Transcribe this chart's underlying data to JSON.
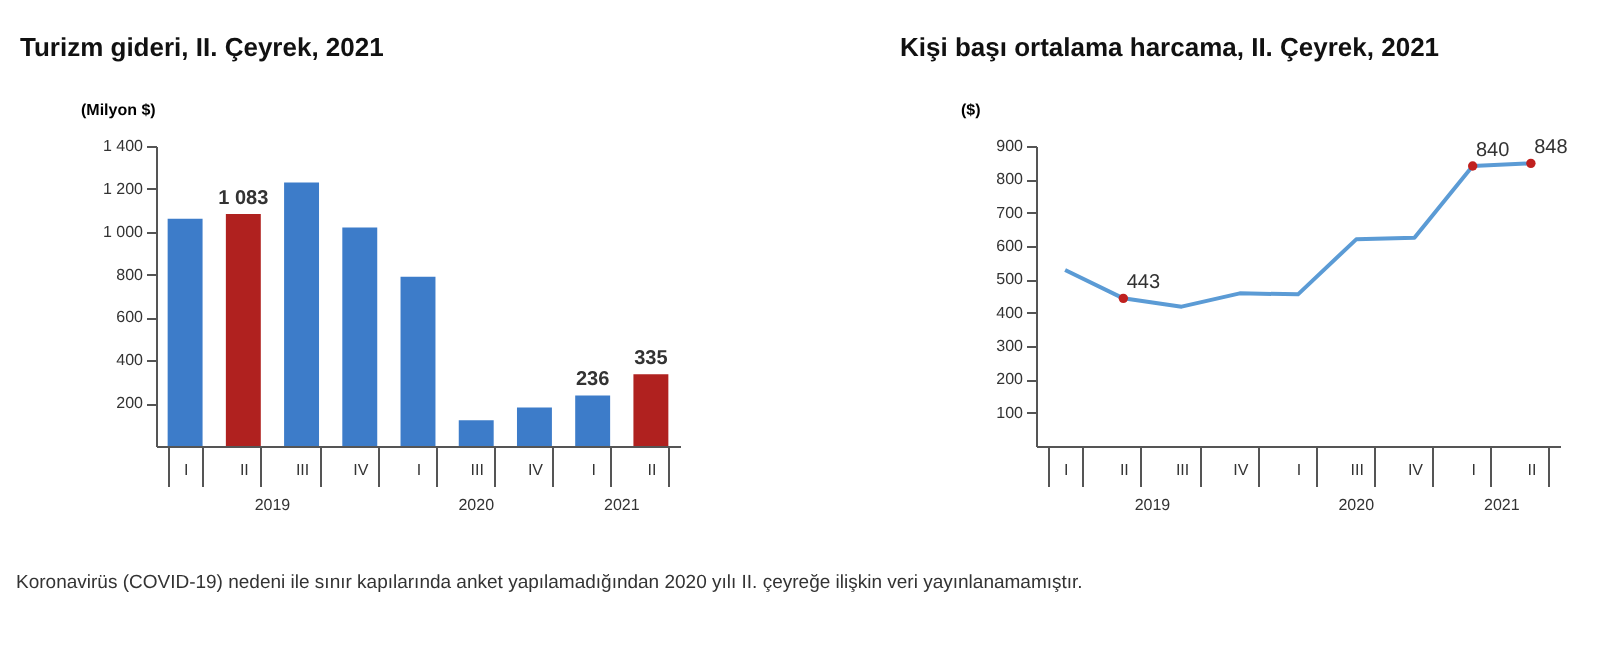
{
  "chart_data": [
    {
      "type": "bar",
      "title": "Turizm gideri, II. Çeyrek, 2021",
      "ylabel": "(Milyon $)",
      "categories": [
        "I",
        "II",
        "III",
        "IV",
        "I",
        "III",
        "IV",
        "I",
        "II"
      ],
      "values": [
        1060,
        1083,
        1230,
        1020,
        790,
        120,
        180,
        236,
        335
      ],
      "colors": [
        "#3d7cc9",
        "#b0211f",
        "#3d7cc9",
        "#3d7cc9",
        "#3d7cc9",
        "#3d7cc9",
        "#3d7cc9",
        "#3d7cc9",
        "#b0211f"
      ],
      "value_labels": [
        null,
        "1 083",
        null,
        null,
        null,
        null,
        null,
        "236",
        "335"
      ],
      "ylim": [
        0,
        1400
      ],
      "yticks": [
        {
          "value": 200,
          "label": "200"
        },
        {
          "value": 400,
          "label": "400"
        },
        {
          "value": 600,
          "label": "600"
        },
        {
          "value": 800,
          "label": "800"
        },
        {
          "value": 1000,
          "label": "1 000"
        },
        {
          "value": 1200,
          "label": "1 200"
        },
        {
          "value": 1400,
          "label": "1 400"
        }
      ],
      "annotations": [
        "2019",
        "2020",
        "2021",
        "Koronavirüs (COVID-19) nedeni ile sınır kapılarında anket yapılamadığından 2020 yılı II. çeyreğe ilişkin veri yayınlanamamıştır."
      ]
    },
    {
      "type": "line",
      "title": "Kişi başı ortalama harcama, II. Çeyrek, 2021",
      "ylabel": "($)",
      "categories": [
        "I",
        "II",
        "III",
        "IV",
        "I",
        "III",
        "IV",
        "I",
        "II"
      ],
      "series": [
        {
          "color": "#5b9bd5",
          "values": [
            528,
            443,
            418,
            458,
            455,
            620,
            625,
            840,
            848
          ],
          "value_labels": [
            null,
            "443",
            null,
            null,
            null,
            null,
            null,
            "840",
            "848"
          ]
        },
        {
          "type": "scatter",
          "color": "#c0211f",
          "values": [
            null,
            443,
            null,
            null,
            null,
            null,
            null,
            840,
            848
          ]
        }
      ],
      "ylim": [
        0,
        900
      ],
      "yticks": [
        100,
        200,
        300,
        400,
        500,
        600,
        700,
        800,
        900
      ],
      "annotations": [
        "2019",
        "2020",
        "2021"
      ]
    }
  ]
}
